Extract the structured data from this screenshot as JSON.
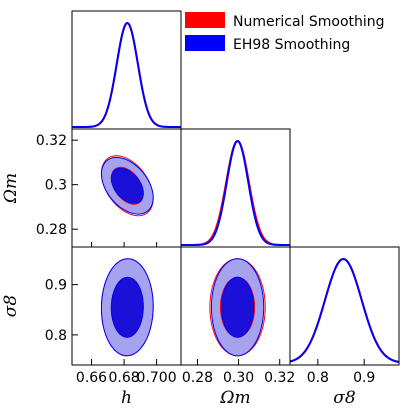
{
  "chart_data": {
    "type": "triangle_corner_plot",
    "legend": {
      "placement": "top-right",
      "entries": [
        {
          "label": "Numerical Smoothing",
          "color": "#ff0000"
        },
        {
          "label": "EH98 Smoothing",
          "color": "#0000ff"
        }
      ]
    },
    "parameters": [
      {
        "name": "h",
        "label": "h",
        "range": [
          0.648,
          0.715
        ],
        "ticks": [
          0.66,
          0.68,
          0.7
        ],
        "tick_labels": [
          "0.66",
          "0.68",
          "0.700"
        ]
      },
      {
        "name": "Omega_m",
        "label": "Ωm",
        "range": [
          0.272,
          0.325
        ],
        "ticks": [
          0.28,
          0.3,
          0.32
        ],
        "tick_labels": [
          "0.28",
          "0.30",
          "0.32"
        ],
        "y_tick_labels": [
          "0.28",
          "0.3",
          "0.32"
        ]
      },
      {
        "name": "sigma_8",
        "label": "σ8",
        "range": [
          0.74,
          0.975
        ],
        "ticks": [
          0.8,
          0.9
        ],
        "tick_labels": [
          "0.8",
          "0.9"
        ]
      }
    ],
    "series": [
      {
        "name": "Numerical Smoothing",
        "color": "#ff0000",
        "means": {
          "h": 0.682,
          "Omega_m": 0.2995,
          "sigma_8": 0.855
        },
        "sigmas": {
          "h": 0.0065,
          "Omega_m": 0.0055,
          "sigma_8": 0.0395
        },
        "correlations": {
          "h_Omega_m": -0.42,
          "h_sigma_8": 0.02,
          "Omega_m_sigma_8": 0.0
        }
      },
      {
        "name": "EH98 Smoothing",
        "color": "#0000ff",
        "means": {
          "h": 0.682,
          "Omega_m": 0.2995,
          "sigma_8": 0.855
        },
        "sigmas": {
          "h": 0.0065,
          "Omega_m": 0.0052,
          "sigma_8": 0.0395
        },
        "correlations": {
          "h_Omega_m": -0.42,
          "h_sigma_8": 0.02,
          "Omega_m_sigma_8": 0.0
        }
      }
    ],
    "contour_levels": [
      "68%",
      "95%"
    ],
    "contour_fill_colors": {
      "inner": "#1a10d8",
      "outer": "#a6a3ee"
    }
  }
}
